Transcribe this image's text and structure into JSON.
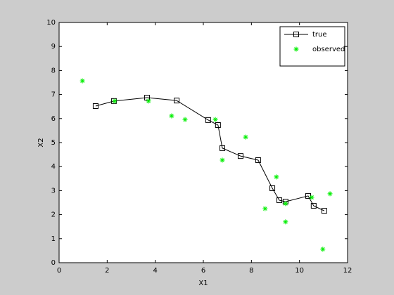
{
  "chart_data": {
    "type": "line",
    "xlabel": "X1",
    "ylabel": "X2",
    "xlim": [
      0,
      12
    ],
    "xticks": [
      0,
      2,
      4,
      6,
      8,
      10,
      12
    ],
    "ylim": [
      0,
      10
    ],
    "yticks": [
      0,
      1,
      2,
      3,
      4,
      5,
      6,
      7,
      8,
      9,
      10
    ],
    "grid": false,
    "legend": "northeast",
    "series": [
      {
        "name": "true",
        "color": "#000000",
        "line": true,
        "marker": "square",
        "x": [
          1.52,
          2.28,
          3.66,
          4.89,
          6.2,
          6.61,
          6.79,
          7.55,
          8.28,
          8.87,
          9.16,
          9.42,
          10.36,
          10.59,
          11.03
        ],
        "values": [
          6.52,
          6.73,
          6.87,
          6.75,
          5.94,
          5.73,
          4.77,
          4.44,
          4.27,
          3.1,
          2.6,
          2.54,
          2.78,
          2.37,
          2.16
        ]
      },
      {
        "name": "observed",
        "color": "#00ee00",
        "line": false,
        "marker": "asterisk",
        "x": [
          0.97,
          2.31,
          3.72,
          4.68,
          5.24,
          6.5,
          7.76,
          6.79,
          9.04,
          8.57,
          9.42,
          10.51,
          11.27,
          9.42,
          10.97
        ],
        "values": [
          7.57,
          6.73,
          6.73,
          6.11,
          5.96,
          5.96,
          5.23,
          4.27,
          3.57,
          2.25,
          2.46,
          2.72,
          2.87,
          1.7,
          0.56
        ]
      }
    ]
  }
}
